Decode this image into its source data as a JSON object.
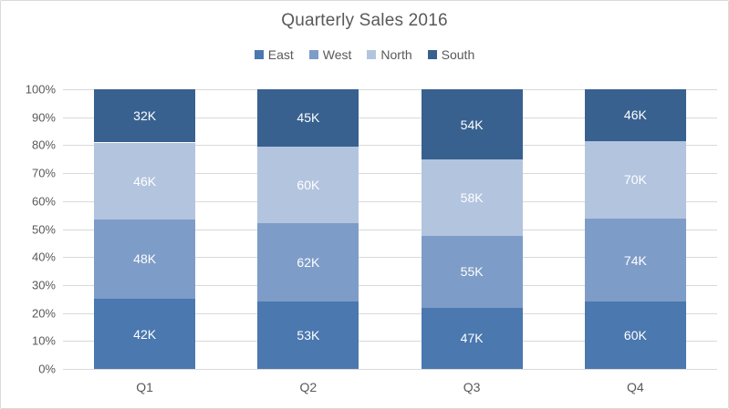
{
  "chart_data": {
    "type": "bar",
    "subtype": "stacked-100-percent-column",
    "title": "Quarterly Sales 2016",
    "categories": [
      "Q1",
      "Q2",
      "Q3",
      "Q4"
    ],
    "series": [
      {
        "name": "East",
        "color": "#4a78af",
        "values": [
          42,
          53,
          47,
          60
        ]
      },
      {
        "name": "West",
        "color": "#7e9cc8",
        "values": [
          48,
          62,
          55,
          74
        ]
      },
      {
        "name": "North",
        "color": "#b3c4df",
        "values": [
          46,
          60,
          58,
          70
        ]
      },
      {
        "name": "South",
        "color": "#38618f",
        "values": [
          32,
          45,
          54,
          46
        ]
      }
    ],
    "data_label_suffix": "K",
    "data_label_color": "#ffffff",
    "y_axis": {
      "tick_labels": [
        "0%",
        "10%",
        "20%",
        "30%",
        "40%",
        "50%",
        "60%",
        "70%",
        "80%",
        "90%",
        "100%"
      ],
      "min": 0,
      "max": 100
    },
    "legend_position": "top",
    "grid": true,
    "gridline_color": "#d9d9d9",
    "text_color": "#595959"
  }
}
